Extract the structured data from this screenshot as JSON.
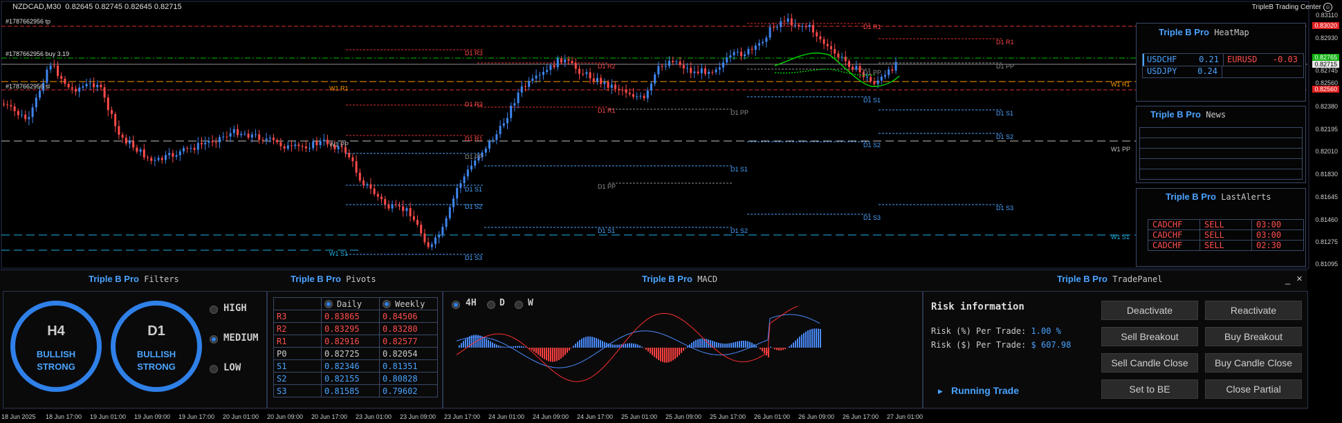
{
  "header": {
    "symbol": "NZDCAD,M30",
    "ohlc": "0.82645 0.82745 0.82645 0.82715",
    "brand": "TripleB Trading Center",
    "smiley": "☺"
  },
  "trade_lines": {
    "tp": "#1787662956 tp",
    "buy": "#1787662956 buy 3.19",
    "sl": "#1787662956 sl"
  },
  "price_axis": [
    "0.83110",
    "0.82930",
    "0.82745",
    "0.82560",
    "0.82380",
    "0.82195",
    "0.82010",
    "0.81830",
    "0.81645",
    "0.81460",
    "0.81275",
    "0.81095"
  ],
  "price_boxes": {
    "upper": "0.83020",
    "green": "0.82765",
    "bid": "0.82715",
    "lower": "0.82560"
  },
  "time_axis": [
    "18 Jun 2025",
    "18 Jun 17:00",
    "19 Jun 01:00",
    "19 Jun 09:00",
    "19 Jun 17:00",
    "20 Jun 01:00",
    "20 Jun 09:00",
    "20 Jun 17:00",
    "23 Jun 01:00",
    "23 Jun 09:00",
    "23 Jun 17:00",
    "24 Jun 01:00",
    "24 Jun 09:00",
    "24 Jun 17:00",
    "25 Jun 01:00",
    "25 Jun 09:00",
    "25 Jun 17:00",
    "26 Jun 01:00",
    "26 Jun 09:00",
    "26 Jun 17:00",
    "27 Jun 01:00"
  ],
  "levels": {
    "d1r1": "D1 R1",
    "d1r2": "D1 R2",
    "d1r3": "D1 R3",
    "d1pp": "D1 PP",
    "d1s1": "D1 S1",
    "d1s2": "D1 S2",
    "d1s3": "D1 S3",
    "w1r1": "W1 R1",
    "w1pp": "W1 PP",
    "w1s1": "W1 S1"
  },
  "colors": {
    "bull": "#3f86f0",
    "bear": "#ff4a4a",
    "accent": "#4aa3ff",
    "w1r1": "#ff9d00",
    "w1pp": "#c0c0c0",
    "w1s1": "#1fb3e6",
    "green": "#00d000"
  },
  "heatmap": {
    "brand": "Triple B Pro",
    "title": "HeatMap",
    "cells": [
      {
        "pair": "USDCHF",
        "value": "0.21",
        "color": "#4aa3ff"
      },
      {
        "pair": "EURUSD",
        "value": "-0.03",
        "color": "#ff4d4d"
      },
      {
        "pair": "USDJPY",
        "value": "0.24",
        "color": "#4aa3ff"
      }
    ]
  },
  "news": {
    "brand": "Triple B Pro",
    "title": "News"
  },
  "alerts": {
    "brand": "Triple B Pro",
    "title": "LastAlerts",
    "rows": [
      {
        "pair": "CADCHF",
        "side": "SELL",
        "time": "03:00"
      },
      {
        "pair": "CADCHF",
        "side": "SELL",
        "time": "03:00"
      },
      {
        "pair": "CADCHF",
        "side": "SELL",
        "time": "02:30"
      }
    ]
  },
  "filters": {
    "brand": "Triple B Pro",
    "title": "Filters",
    "gauges": [
      {
        "tf": "H4",
        "line1": "BULLISH",
        "line2": "STRONG"
      },
      {
        "tf": "D1",
        "line1": "BULLISH",
        "line2": "STRONG"
      }
    ],
    "options": [
      "HIGH",
      "MEDIUM",
      "LOW"
    ],
    "selected": "MEDIUM"
  },
  "pivots": {
    "brand": "Triple B Pro",
    "title": "Pivots",
    "col_daily": "Daily",
    "col_weekly": "Weekly",
    "rows": [
      {
        "label": "R3",
        "daily": "0.83865",
        "weekly": "0.84506"
      },
      {
        "label": "R2",
        "daily": "0.83295",
        "weekly": "0.83280"
      },
      {
        "label": "R1",
        "daily": "0.82916",
        "weekly": "0.82577"
      },
      {
        "label": "P0",
        "daily": "0.82725",
        "weekly": "0.82054"
      },
      {
        "label": "S1",
        "daily": "0.82346",
        "weekly": "0.81351"
      },
      {
        "label": "S2",
        "daily": "0.82155",
        "weekly": "0.80828"
      },
      {
        "label": "S3",
        "daily": "0.81585",
        "weekly": "0.79602"
      }
    ]
  },
  "macd": {
    "brand": "Triple B Pro",
    "title": "MACD",
    "timeframes": [
      "4H",
      "D",
      "W"
    ],
    "selected": "4H"
  },
  "tradepanel": {
    "brand": "Triple B Pro",
    "title": "TradePanel",
    "minimize": "_",
    "close": "×",
    "risk_title": "Risk information",
    "risk_pct_label": "Risk (%) Per Trade:",
    "risk_pct_value": "1.00 %",
    "risk_usd_label": "Risk ($) Per Trade:",
    "risk_usd_value": "$ 607.98",
    "running": "Running Trade",
    "buttons": {
      "deactivate": "Deactivate",
      "reactivate": "Reactivate",
      "sell_breakout": "Sell Breakout",
      "buy_breakout": "Buy Breakout",
      "sell_candle_close": "Sell Candle Close",
      "buy_candle_close": "Buy Candle Close",
      "set_to_be": "Set to BE",
      "close_partial": "Close Partial"
    }
  }
}
